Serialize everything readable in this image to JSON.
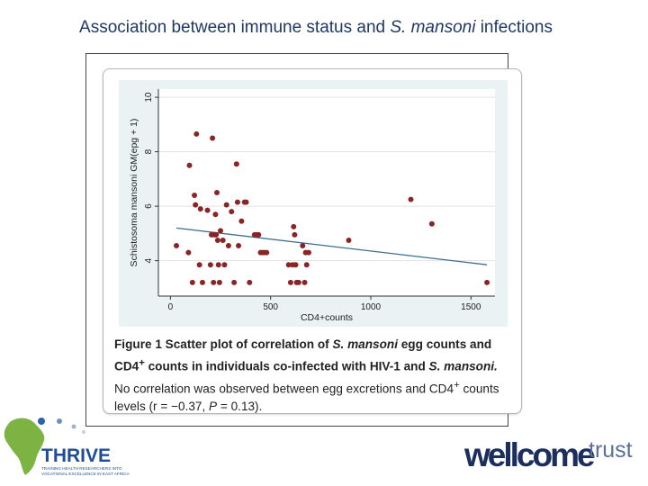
{
  "slide": {
    "title_pre": "Association between immune status and ",
    "title_italic": "S. mansoni",
    "title_post": " infections"
  },
  "chart_data": {
    "type": "scatter",
    "xlabel": "CD4+counts",
    "ylabel": "Schistosoma mansoni GM(epg + 1)",
    "xlim": [
      -60,
      1620
    ],
    "ylim": [
      2.7,
      10.3
    ],
    "xticks": [
      0,
      500,
      1000,
      1500
    ],
    "yticks": [
      4,
      6,
      8,
      10
    ],
    "grid": true,
    "colors": {
      "point": "#8b2525",
      "fit": "#3d6e8f",
      "plot_bg": "#eaf2f3"
    },
    "points": [
      {
        "x": 30,
        "y": 4.55
      },
      {
        "x": 90,
        "y": 4.3
      },
      {
        "x": 95,
        "y": 7.5
      },
      {
        "x": 110,
        "y": 3.2
      },
      {
        "x": 120,
        "y": 6.4
      },
      {
        "x": 125,
        "y": 6.05
      },
      {
        "x": 130,
        "y": 8.65
      },
      {
        "x": 145,
        "y": 3.85
      },
      {
        "x": 150,
        "y": 5.9
      },
      {
        "x": 160,
        "y": 3.2
      },
      {
        "x": 185,
        "y": 5.85
      },
      {
        "x": 200,
        "y": 3.85
      },
      {
        "x": 205,
        "y": 4.95
      },
      {
        "x": 210,
        "y": 8.5
      },
      {
        "x": 215,
        "y": 3.2
      },
      {
        "x": 220,
        "y": 4.95
      },
      {
        "x": 225,
        "y": 5.7
      },
      {
        "x": 228,
        "y": 4.95
      },
      {
        "x": 232,
        "y": 6.5
      },
      {
        "x": 236,
        "y": 4.75
      },
      {
        "x": 240,
        "y": 3.85
      },
      {
        "x": 245,
        "y": 3.2
      },
      {
        "x": 250,
        "y": 5.1
      },
      {
        "x": 262,
        "y": 4.75
      },
      {
        "x": 270,
        "y": 3.85
      },
      {
        "x": 280,
        "y": 6.05
      },
      {
        "x": 290,
        "y": 4.55
      },
      {
        "x": 305,
        "y": 5.8
      },
      {
        "x": 318,
        "y": 3.2
      },
      {
        "x": 330,
        "y": 7.55
      },
      {
        "x": 335,
        "y": 6.15
      },
      {
        "x": 340,
        "y": 4.55
      },
      {
        "x": 355,
        "y": 5.45
      },
      {
        "x": 370,
        "y": 6.15
      },
      {
        "x": 378,
        "y": 6.15
      },
      {
        "x": 395,
        "y": 3.2
      },
      {
        "x": 420,
        "y": 4.95
      },
      {
        "x": 430,
        "y": 4.95
      },
      {
        "x": 440,
        "y": 4.95
      },
      {
        "x": 450,
        "y": 4.3
      },
      {
        "x": 460,
        "y": 4.3
      },
      {
        "x": 470,
        "y": 4.3
      },
      {
        "x": 480,
        "y": 4.3
      },
      {
        "x": 590,
        "y": 3.85
      },
      {
        "x": 600,
        "y": 3.2
      },
      {
        "x": 610,
        "y": 3.85
      },
      {
        "x": 615,
        "y": 5.25
      },
      {
        "x": 620,
        "y": 4.95
      },
      {
        "x": 625,
        "y": 3.85
      },
      {
        "x": 630,
        "y": 3.2
      },
      {
        "x": 640,
        "y": 3.2
      },
      {
        "x": 660,
        "y": 4.55
      },
      {
        "x": 670,
        "y": 3.2
      },
      {
        "x": 675,
        "y": 4.3
      },
      {
        "x": 680,
        "y": 3.85
      },
      {
        "x": 690,
        "y": 4.3
      },
      {
        "x": 890,
        "y": 4.75
      },
      {
        "x": 1200,
        "y": 6.25
      },
      {
        "x": 1305,
        "y": 5.35
      },
      {
        "x": 1580,
        "y": 3.2
      }
    ],
    "fit_line": [
      {
        "x": 30,
        "y": 5.2
      },
      {
        "x": 1580,
        "y": 3.85
      }
    ]
  },
  "caption": {
    "bold_1": "Figure 1",
    "bold_2": " Scatter plot of correlation of ",
    "bold_italic_1": "S. mansoni",
    "bold_3": " egg counts and CD4",
    "bold_sup": "+",
    "bold_4": " counts in individuals co-infected with HIV-1 and ",
    "bold_italic_2": "S. mansoni.",
    "text_1": " No correlation was observed between egg excretions and CD4",
    "text_sup": "+",
    "text_2": " counts levels (r = −0.37, ",
    "text_italic": "P",
    "text_3": " = 0.13)."
  },
  "logos": {
    "thrive_name": "THRIVE",
    "thrive_line1": "TRAINING HEALTH RESEARCHERS INTO",
    "thrive_line2": "VOCATIONAL EXCELLENCE IN EAST AFRICA",
    "wellcome_word": "wellcome",
    "trust_word": "trust"
  }
}
